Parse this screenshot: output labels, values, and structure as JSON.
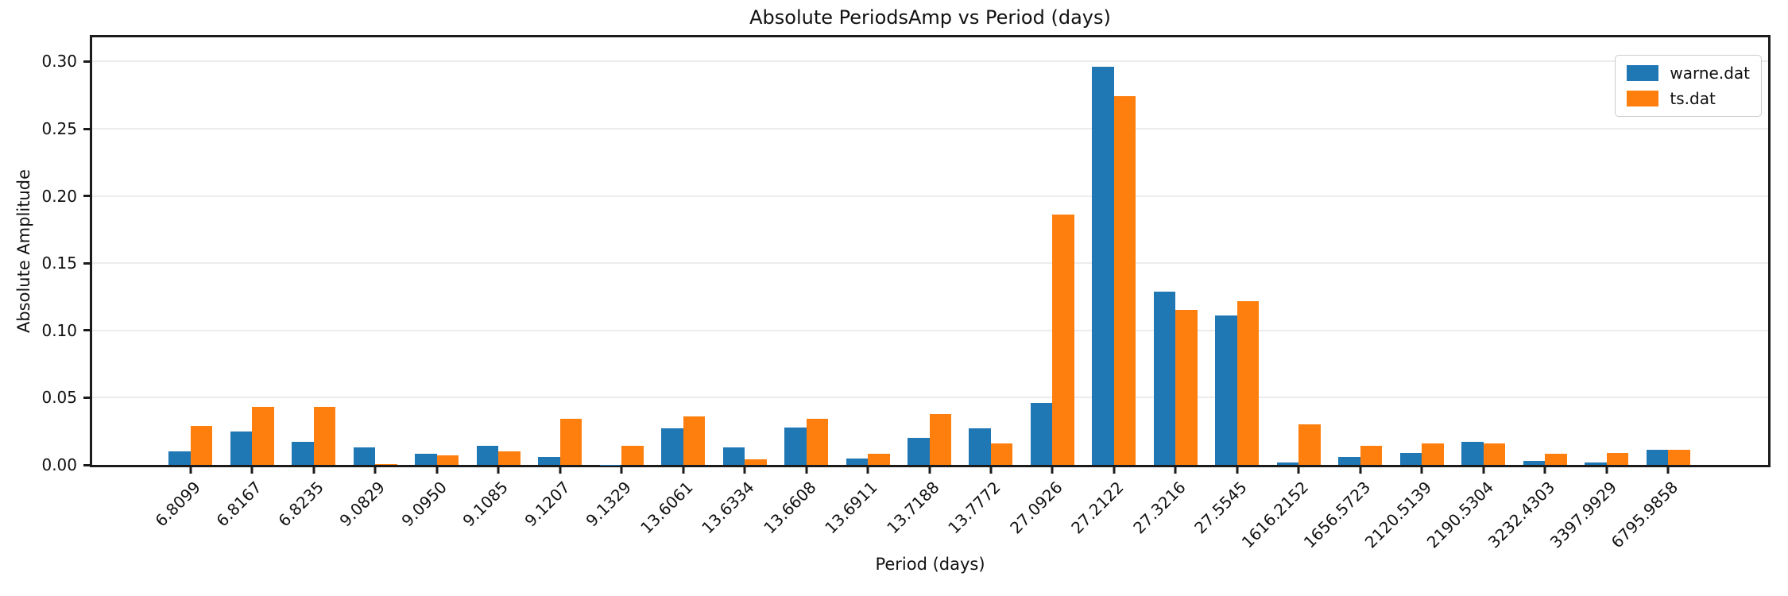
{
  "chart_data": {
    "type": "bar",
    "title": "Absolute PeriodsAmp vs Period (days)",
    "xlabel": "Period (days)",
    "ylabel": "Absolute Amplitude",
    "ylim": [
      0,
      0.318
    ],
    "ytick_labels": [
      "0.00",
      "0.05",
      "0.10",
      "0.15",
      "0.20",
      "0.25",
      "0.30"
    ],
    "grid": "horizontal",
    "legend_position": "upper right",
    "background_color": "#ffffff",
    "spine_color": "#1b1b1b",
    "gridline_color": "#ececec",
    "categories": [
      "6.8099",
      "6.8167",
      "6.8235",
      "9.0829",
      "9.0950",
      "9.1085",
      "9.1207",
      "9.1329",
      "13.6061",
      "13.6334",
      "13.6608",
      "13.6911",
      "13.7188",
      "13.7772",
      "27.0926",
      "27.2122",
      "27.3216",
      "27.5545",
      "1616.2152",
      "1656.5723",
      "2120.5139",
      "2190.5304",
      "3232.4303",
      "3397.9929",
      "6795.9858"
    ],
    "series": [
      {
        "name": "warne.dat",
        "color": "#1f77b4",
        "values": [
          0.01,
          0.025,
          0.017,
          0.013,
          0.008,
          0.014,
          0.006,
          0.0003,
          0.027,
          0.013,
          0.028,
          0.005,
          0.02,
          0.027,
          0.046,
          0.296,
          0.129,
          0.111,
          0.002,
          0.006,
          0.009,
          0.017,
          0.003,
          0.002,
          0.011
        ]
      },
      {
        "name": "ts.dat",
        "color": "#ff7f0e",
        "values": [
          0.029,
          0.043,
          0.043,
          0.0005,
          0.007,
          0.01,
          0.034,
          0.014,
          0.036,
          0.004,
          0.034,
          0.008,
          0.038,
          0.016,
          0.186,
          0.274,
          0.115,
          0.122,
          0.03,
          0.014,
          0.016,
          0.016,
          0.008,
          0.009,
          0.011
        ]
      }
    ]
  }
}
